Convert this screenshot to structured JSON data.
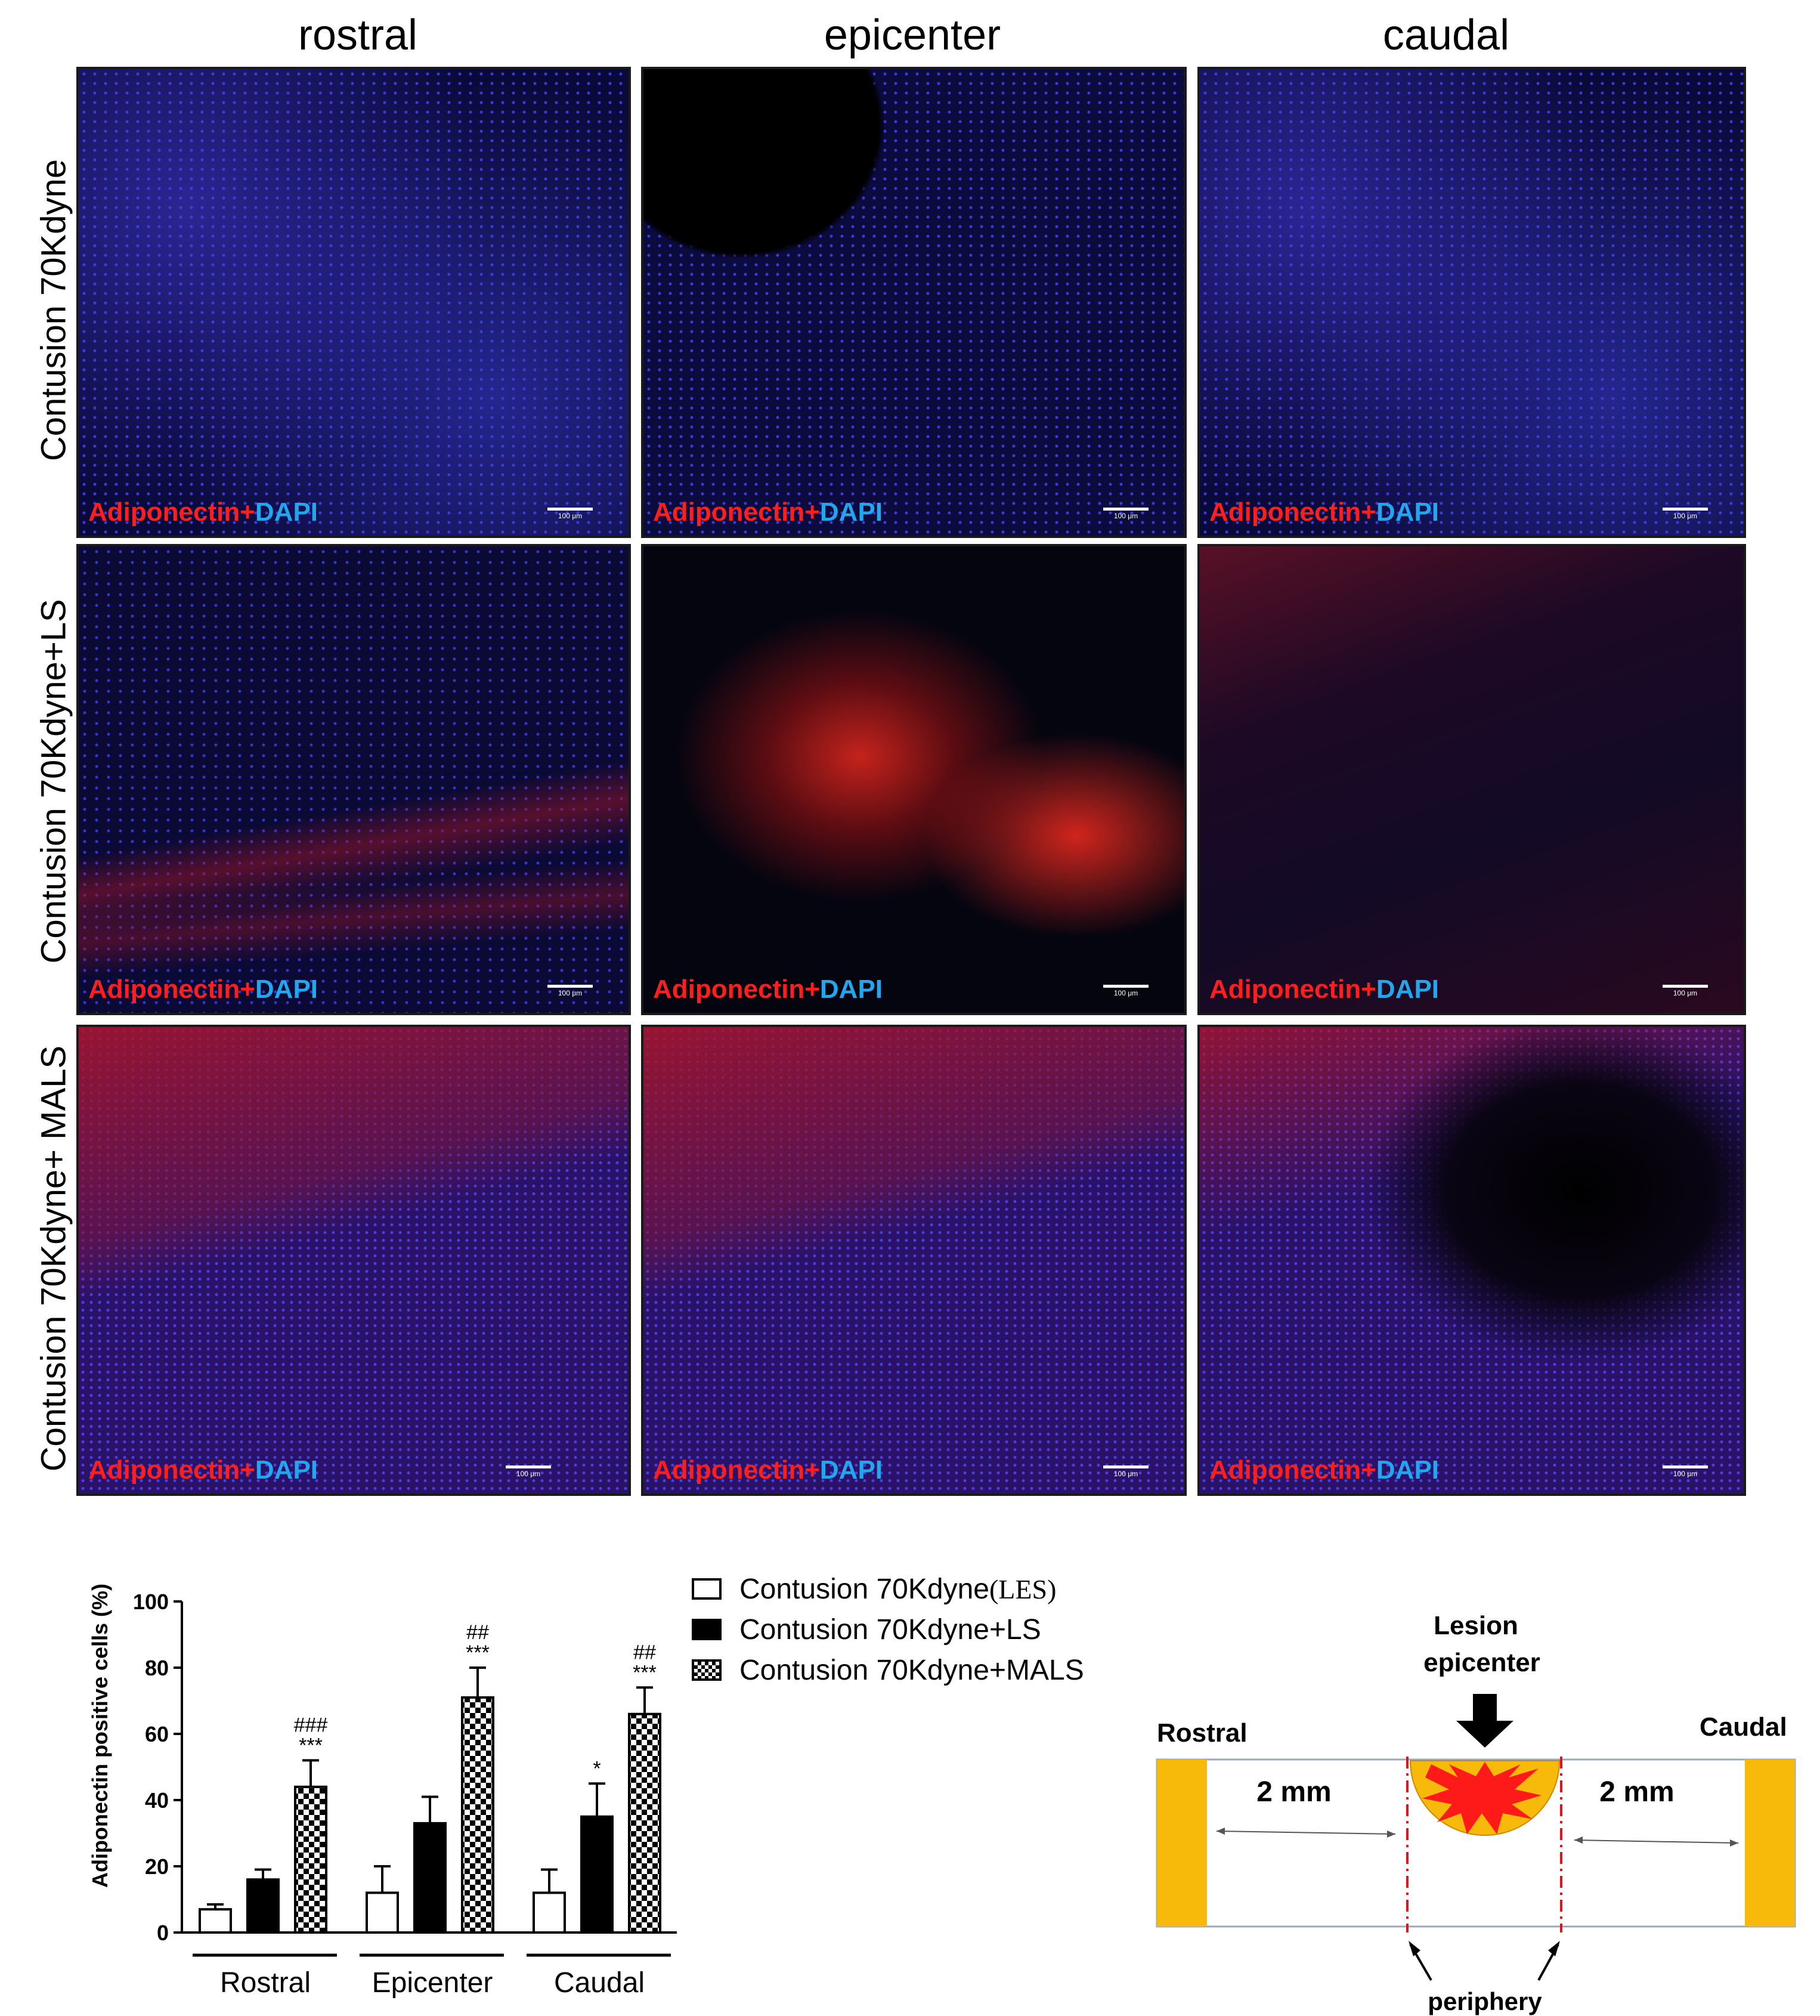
{
  "columns": [
    "rostral",
    "epicenter",
    "caudal"
  ],
  "rows": [
    "Contusion 70Kdyne",
    "Contusion 70Kdyne+LS",
    "Contusion 70Kdyne+ MALS"
  ],
  "stain": {
    "marker": "Adiponectin+",
    "counterstain": "DAPI"
  },
  "scale_bar": "100 μm",
  "colors": {
    "marker": "#ff1e1e",
    "counterstain": "#22a6ee",
    "lesion_orange": "#f5b800",
    "lesion_red": "#ff1a1a"
  },
  "chart_data": {
    "type": "bar",
    "ylabel": "Adiponectin positive cells (%)",
    "ylim": [
      0,
      100
    ],
    "yticks": [
      0,
      20,
      40,
      60,
      80,
      100
    ],
    "categories": [
      "Rostral",
      "Epicenter",
      "Caudal"
    ],
    "series": [
      {
        "name": "Contusion 70Kdyne",
        "name_suffix": "(LES)",
        "style": "open",
        "values": [
          7,
          12,
          12
        ],
        "errors": [
          1.5,
          8,
          7
        ],
        "annotations": [
          "",
          "",
          ""
        ]
      },
      {
        "name": "Contusion 70Kdyne+LS",
        "style": "filled",
        "values": [
          16,
          33,
          35
        ],
        "errors": [
          3,
          8,
          10
        ],
        "annotations": [
          "",
          "",
          "*"
        ]
      },
      {
        "name": "Contusion 70Kdyne+MALS",
        "style": "checkered",
        "values": [
          44,
          71,
          66
        ],
        "errors": [
          8,
          9,
          8
        ],
        "annotations": [
          "###\n***",
          "##\n***",
          "##\n***"
        ]
      }
    ]
  },
  "schematic": {
    "lesion_label_line1": "Lesion",
    "lesion_label_line2": "epicenter",
    "rostral_label": "Rostral",
    "caudal_label": "Caudal",
    "left_distance": "2 mm",
    "right_distance": "2 mm",
    "periphery_label": "periphery"
  }
}
